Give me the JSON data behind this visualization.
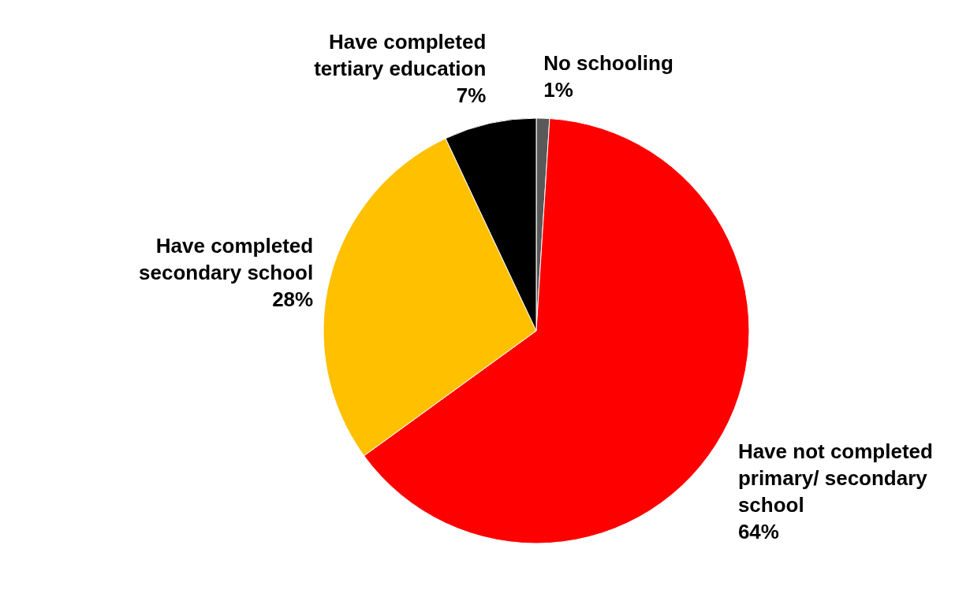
{
  "chart_data": {
    "type": "pie",
    "categories": [
      "No schooling",
      "Have not completed primary/ secondary school",
      "Have completed secondary school",
      "Have completed tertiary education"
    ],
    "values": [
      1,
      64,
      28,
      7
    ],
    "colors": [
      "#595959",
      "#ff0000",
      "#ffc000",
      "#000000"
    ],
    "value_labels": [
      "1%",
      "64%",
      "28%",
      "7%"
    ],
    "legend": false
  }
}
